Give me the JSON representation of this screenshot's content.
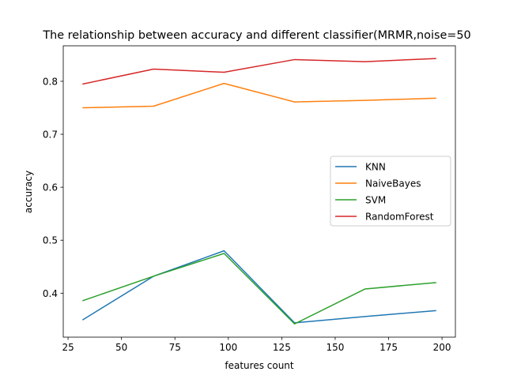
{
  "chart_data": {
    "type": "line",
    "title": "The relationship between accuracy and different classifier(MRMR,noise=50",
    "xlabel": "features count",
    "ylabel": "accuracy",
    "x": [
      32,
      65,
      98,
      131,
      164,
      197
    ],
    "xlim": [
      22.75,
      206.25
    ],
    "ylim": [
      0.317,
      0.867
    ],
    "xticks": [
      25,
      50,
      75,
      100,
      125,
      150,
      175,
      200
    ],
    "xtick_labels": [
      "25",
      "50",
      "75",
      "100",
      "125",
      "150",
      "175",
      "200"
    ],
    "yticks": [
      0.4,
      0.5,
      0.6,
      0.7,
      0.8
    ],
    "ytick_labels": [
      "0.4",
      "0.5",
      "0.6",
      "0.7",
      "0.8"
    ],
    "grid": false,
    "legend_position": "center-right",
    "series": [
      {
        "name": "KNN",
        "color": "#1f77b4",
        "values": [
          0.35,
          0.432,
          0.48,
          0.344,
          0.356,
          0.367
        ]
      },
      {
        "name": "NaiveBayes",
        "color": "#ff7f0e",
        "values": [
          0.75,
          0.753,
          0.796,
          0.761,
          0.764,
          0.768
        ]
      },
      {
        "name": "SVM",
        "color": "#2ca02c",
        "values": [
          0.386,
          0.432,
          0.475,
          0.342,
          0.408,
          0.42
        ]
      },
      {
        "name": "RandomForest",
        "color": "#d62728",
        "values": [
          0.795,
          0.823,
          0.817,
          0.841,
          0.837,
          0.843
        ]
      }
    ]
  }
}
